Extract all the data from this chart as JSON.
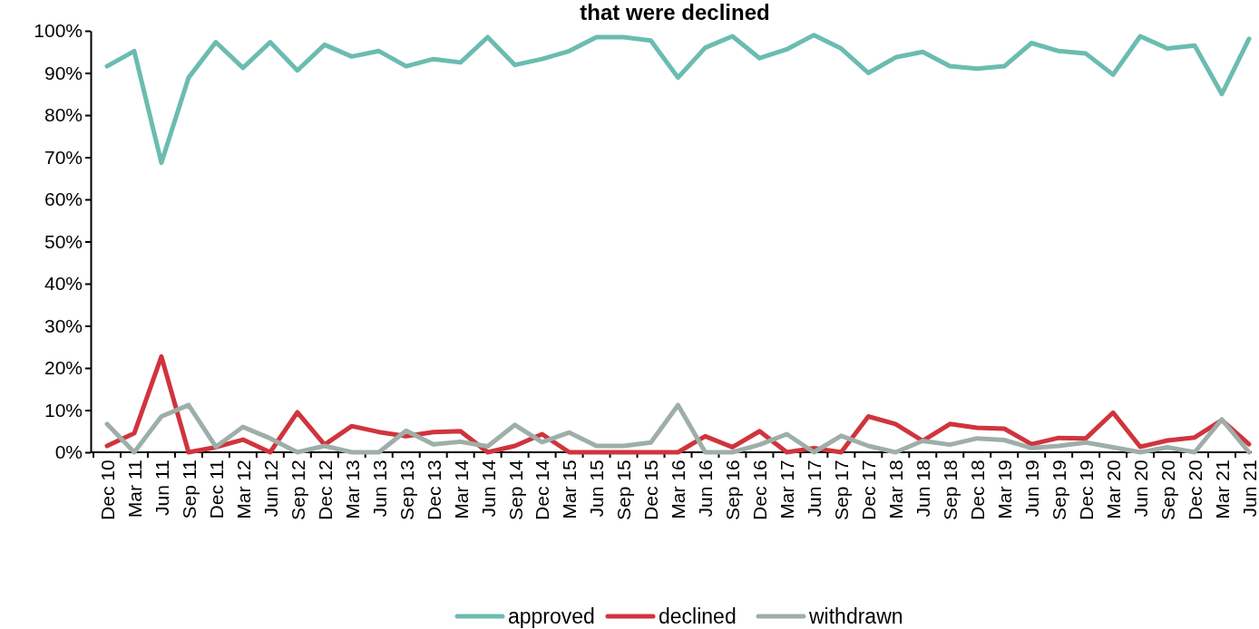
{
  "chart_data": {
    "type": "line",
    "title": "that were declined",
    "categories": [
      "Dec 10",
      "Mar 11",
      "Jun 11",
      "Sep 11",
      "Dec 11",
      "Mar 12",
      "Jun 12",
      "Sep 12",
      "Dec 12",
      "Mar 13",
      "Jun 13",
      "Sep 13",
      "Dec 13",
      "Mar 14",
      "Jun 14",
      "Sep 14",
      "Dec 14",
      "Mar 15",
      "Jun 15",
      "Sep 15",
      "Dec 15",
      "Mar 16",
      "Jun 16",
      "Sep 16",
      "Dec 16",
      "Mar 17",
      "Jun 17",
      "Sep 17",
      "Dec 17",
      "Mar 18",
      "Jun 18",
      "Sep 18",
      "Dec 18",
      "Mar 19",
      "Jun 19",
      "Sep 19",
      "Dec 19",
      "Mar 20",
      "Jun 20",
      "Sep 20",
      "Dec 20",
      "Mar 21",
      "Jun 21"
    ],
    "series": [
      {
        "name": "approved",
        "color": "#6bbcb0",
        "values": [
          91.6,
          95.2,
          68.7,
          88.9,
          97.3,
          91.2,
          97.3,
          90.6,
          96.7,
          93.9,
          95.2,
          91.6,
          93.3,
          92.5,
          98.5,
          91.9,
          93.3,
          95.2,
          98.5,
          98.5,
          97.7,
          88.9,
          96,
          98.7,
          93.5,
          95.6,
          99,
          95.8,
          90,
          93.7,
          95,
          91.6,
          91,
          91.6,
          97.1,
          95.2,
          94.6,
          89.6,
          98.7,
          95.8,
          96.5,
          85,
          98.1
        ]
      },
      {
        "name": "declined",
        "color": "#d0343d",
        "values": [
          1.5,
          4.5,
          22.7,
          0,
          1.2,
          3,
          0,
          9.5,
          1.8,
          6.2,
          4.8,
          3.8,
          4.8,
          5,
          0,
          1.5,
          4.3,
          0,
          0,
          0,
          0,
          0,
          3.8,
          1.2,
          5,
          0,
          1,
          0,
          8.5,
          6.7,
          2.7,
          6.7,
          5.8,
          5.6,
          1.9,
          3.4,
          3.3,
          9.4,
          1.3,
          2.8,
          3.5,
          7.6,
          1.9
        ]
      },
      {
        "name": "withdrawn",
        "color": "#9eaea8",
        "values": [
          6.7,
          0,
          8.5,
          11.2,
          1.3,
          6,
          3.3,
          0,
          1.5,
          0,
          0,
          5.1,
          1.9,
          2.5,
          1.4,
          6.5,
          2.4,
          4.7,
          1.5,
          1.5,
          2.3,
          11.2,
          0,
          0,
          1.8,
          4.3,
          0,
          3.9,
          1.5,
          0,
          2.7,
          1.8,
          3.3,
          2.9,
          1,
          1.5,
          2.3,
          1.2,
          0,
          1.2,
          0,
          7.8,
          0
        ]
      }
    ],
    "ylim": [
      0,
      100
    ],
    "yticks": [
      {
        "value": 0,
        "label": "0%"
      },
      {
        "value": 10,
        "label": "10%"
      },
      {
        "value": 20,
        "label": "20%"
      },
      {
        "value": 30,
        "label": "30%"
      },
      {
        "value": 40,
        "label": "40%"
      },
      {
        "value": 50,
        "label": "50%"
      },
      {
        "value": 60,
        "label": "60%"
      },
      {
        "value": 70,
        "label": "70%"
      },
      {
        "value": 80,
        "label": "80%"
      },
      {
        "value": 90,
        "label": "90%"
      },
      {
        "value": 100,
        "label": "100%"
      }
    ],
    "legend": "bottom",
    "grid": false,
    "marker": "none",
    "line_style": "solid"
  }
}
